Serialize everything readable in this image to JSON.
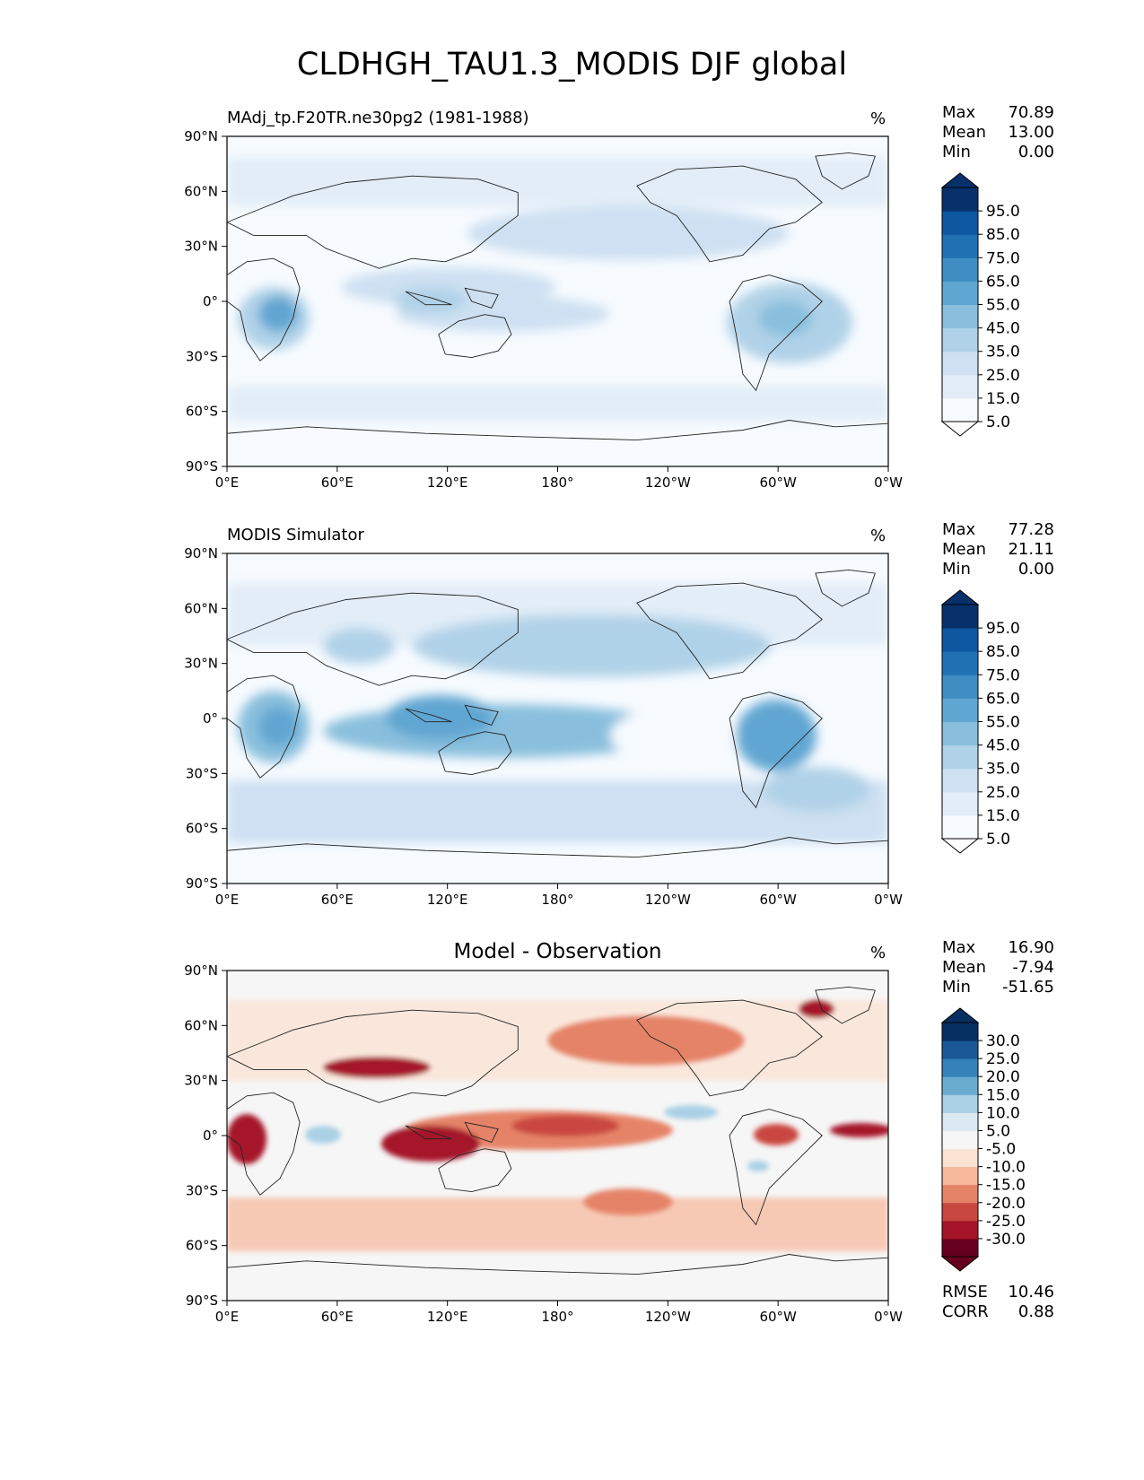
{
  "title": "CLDHGH_TAU1.3_MODIS DJF global",
  "x_ticks": [
    "0°E",
    "60°E",
    "120°E",
    "180°",
    "120°W",
    "60°W",
    "0°W"
  ],
  "y_ticks": [
    "90°N",
    "60°N",
    "30°N",
    "0°",
    "30°S",
    "60°S",
    "90°S"
  ],
  "colors": {
    "blues": [
      "#f7fbff",
      "#e2edf8",
      "#cee0f2",
      "#b0d2e8",
      "#89bfdd",
      "#60a6d2",
      "#3e8ec4",
      "#2171b5",
      "#0d58a1",
      "#08306b"
    ],
    "rdbu": [
      "#67001f",
      "#a51429",
      "#c94741",
      "#e58368",
      "#f7b799",
      "#fbe3d4",
      "#f6f6f6",
      "#dbeaf2",
      "#a9d0e5",
      "#6aacd0",
      "#3581b9",
      "#1a5898",
      "#053061"
    ]
  },
  "panels": [
    {
      "left_title": "MAdj_tp.F20TR.ne30pg2 (1981-1988)",
      "center_title": "",
      "units": "%",
      "stats": [
        {
          "label": "Max",
          "value": "70.89"
        },
        {
          "label": "Mean",
          "value": "13.00"
        },
        {
          "label": "Min",
          "value": "0.00"
        }
      ],
      "colorbar_labels": [
        "95.0",
        "85.0",
        "75.0",
        "65.0",
        "55.0",
        "45.0",
        "35.0",
        "25.0",
        "15.0",
        "5.0"
      ]
    },
    {
      "left_title": "MODIS Simulator",
      "center_title": "",
      "units": "%",
      "stats": [
        {
          "label": "Max",
          "value": "77.28"
        },
        {
          "label": "Mean",
          "value": "21.11"
        },
        {
          "label": "Min",
          "value": "0.00"
        }
      ],
      "colorbar_labels": [
        "95.0",
        "85.0",
        "75.0",
        "65.0",
        "55.0",
        "45.0",
        "35.0",
        "25.0",
        "15.0",
        "5.0"
      ]
    },
    {
      "left_title": "",
      "center_title": "Model - Observation",
      "units": "%",
      "stats": [
        {
          "label": "Max",
          "value": "16.90"
        },
        {
          "label": "Mean",
          "value": "-7.94"
        },
        {
          "label": "Min",
          "value": "-51.65"
        }
      ],
      "colorbar_labels": [
        "30.0",
        "25.0",
        "20.0",
        "15.0",
        "10.0",
        "5.0",
        "-5.0",
        "-10.0",
        "-15.0",
        "-20.0",
        "-25.0",
        "-30.0"
      ],
      "metrics": [
        {
          "label": "RMSE",
          "value": "10.46"
        },
        {
          "label": "CORR",
          "value": "0.88"
        }
      ]
    }
  ]
}
